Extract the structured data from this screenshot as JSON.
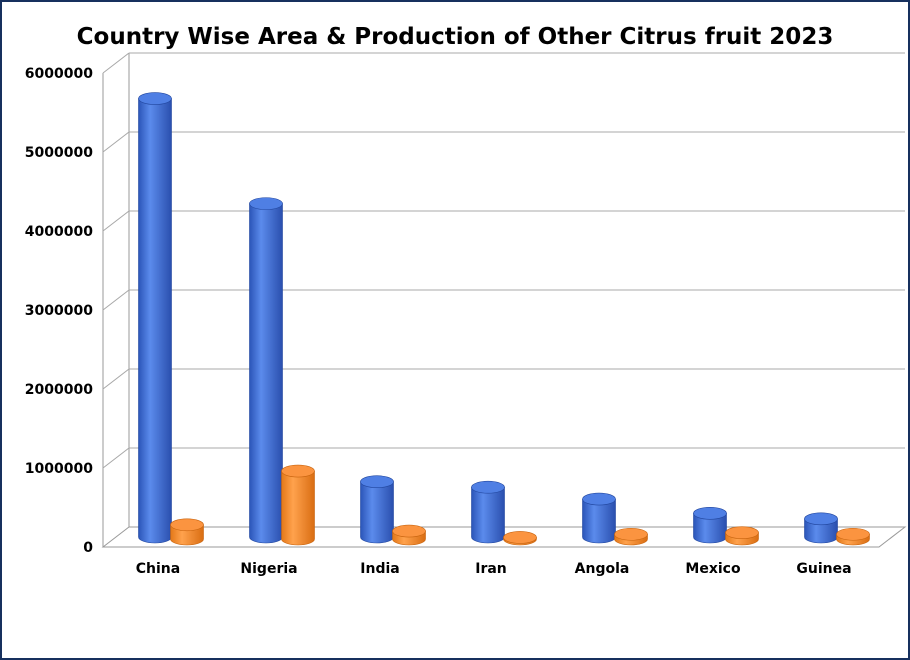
{
  "chart_data": {
    "type": "bar",
    "title": "Country Wise Area & Production of Other Citrus fruit 2023",
    "categories": [
      "China",
      "Nigeria",
      "India",
      "Iran",
      "Angola",
      "Mexico",
      "Guinea"
    ],
    "series": [
      {
        "values": [
          5550000,
          4220000,
          700000,
          630000,
          480000,
          300000,
          230000
        ],
        "color": "#3f6fd8"
      },
      {
        "values": [
          180000,
          860000,
          100000,
          20000,
          60000,
          80000,
          60000
        ],
        "color": "#f28a30"
      }
    ],
    "y_ticks": [
      "0",
      "1000000",
      "2000000",
      "3000000",
      "4000000",
      "5000000",
      "6000000"
    ],
    "ylim": [
      0,
      6000000
    ],
    "grid": true,
    "style": "3d-cylinder"
  }
}
